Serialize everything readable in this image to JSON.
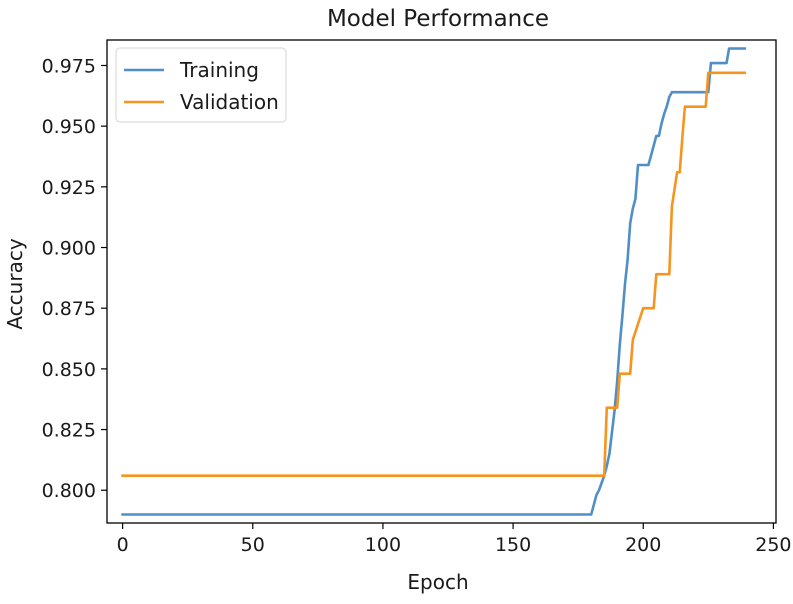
{
  "chart_data": {
    "type": "line",
    "title": "Model Performance",
    "xlabel": "Epoch",
    "ylabel": "Accuracy",
    "xlim": [
      -6,
      251
    ],
    "ylim": [
      0.7865,
      0.9855
    ],
    "xticks": [
      0,
      50,
      100,
      150,
      200,
      250
    ],
    "xtick_labels": [
      "0",
      "50",
      "100",
      "150",
      "200",
      "250"
    ],
    "yticks": [
      0.8,
      0.825,
      0.85,
      0.875,
      0.9,
      0.925,
      0.95,
      0.975
    ],
    "ytick_labels": [
      "0.800",
      "0.825",
      "0.850",
      "0.875",
      "0.900",
      "0.925",
      "0.950",
      "0.975"
    ],
    "grid": false,
    "legend_position": "top-left",
    "series": [
      {
        "name": "Training",
        "color": "#4f8fc6",
        "x": [
          0,
          180,
          181,
          182,
          183,
          184,
          185,
          186,
          187,
          188,
          189,
          190,
          191,
          192,
          193,
          194,
          195,
          196,
          197,
          198,
          199,
          202,
          203,
          204,
          205,
          206,
          207,
          208,
          209,
          210,
          211,
          225,
          226,
          232,
          233,
          239
        ],
        "y": [
          0.79,
          0.79,
          0.794,
          0.798,
          0.8,
          0.803,
          0.806,
          0.81,
          0.815,
          0.824,
          0.833,
          0.845,
          0.86,
          0.872,
          0.885,
          0.895,
          0.91,
          0.916,
          0.92,
          0.934,
          0.934,
          0.934,
          0.938,
          0.942,
          0.946,
          0.946,
          0.951,
          0.955,
          0.958,
          0.962,
          0.964,
          0.964,
          0.976,
          0.976,
          0.982,
          0.982
        ]
      },
      {
        "name": "Validation",
        "color": "#f5951f",
        "x": [
          0,
          185,
          186,
          190,
          191,
          195,
          196,
          200,
          201,
          204,
          205,
          210,
          211,
          213,
          214,
          215,
          216,
          224,
          225,
          239
        ],
        "y": [
          0.806,
          0.806,
          0.834,
          0.834,
          0.848,
          0.848,
          0.862,
          0.875,
          0.875,
          0.875,
          0.889,
          0.889,
          0.917,
          0.931,
          0.931,
          0.945,
          0.958,
          0.958,
          0.972,
          0.972
        ]
      }
    ]
  }
}
